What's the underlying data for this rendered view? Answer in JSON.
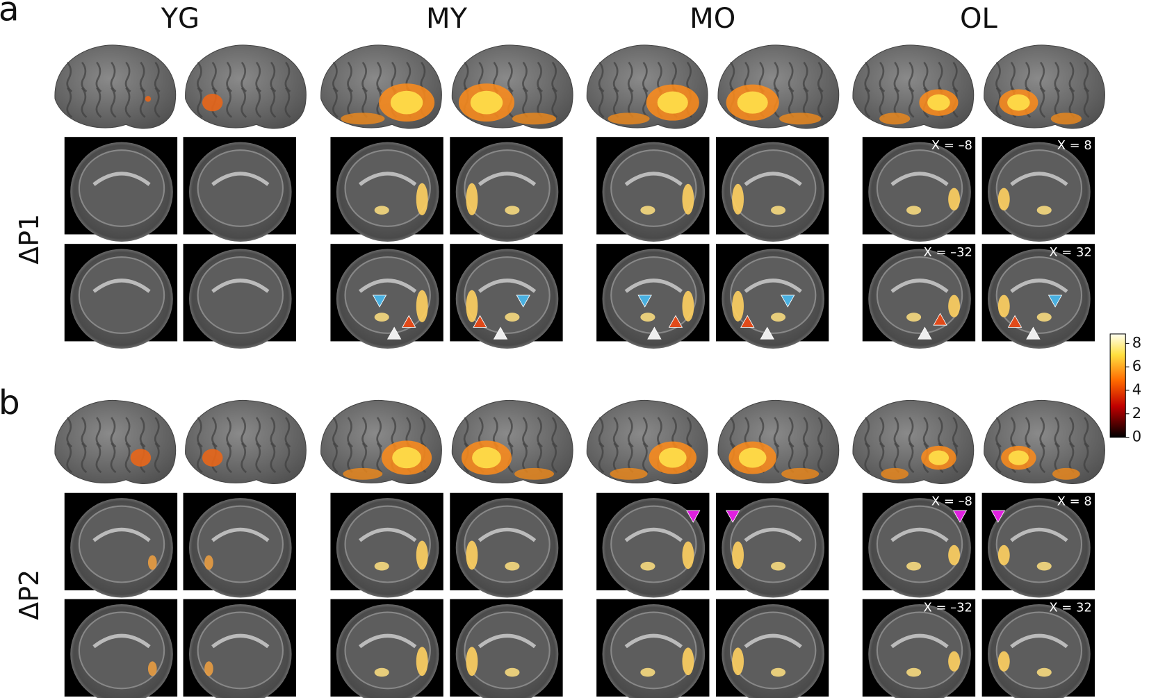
{
  "groups": [
    "YG",
    "MY",
    "MO",
    "OL"
  ],
  "panels": [
    {
      "label": "a",
      "row_label": "ΔP1",
      "coords": [
        "X = –8",
        "X = 8",
        "X = –32",
        "X = 32"
      ]
    },
    {
      "label": "b",
      "row_label": "ΔP2",
      "coords": [
        "X = –8",
        "X = 8",
        "X = –32",
        "X = 32"
      ]
    }
  ],
  "colorbar": {
    "lim": [
      0,
      8.8
    ],
    "ticks": [
      0,
      2,
      4,
      6,
      8
    ]
  }
}
